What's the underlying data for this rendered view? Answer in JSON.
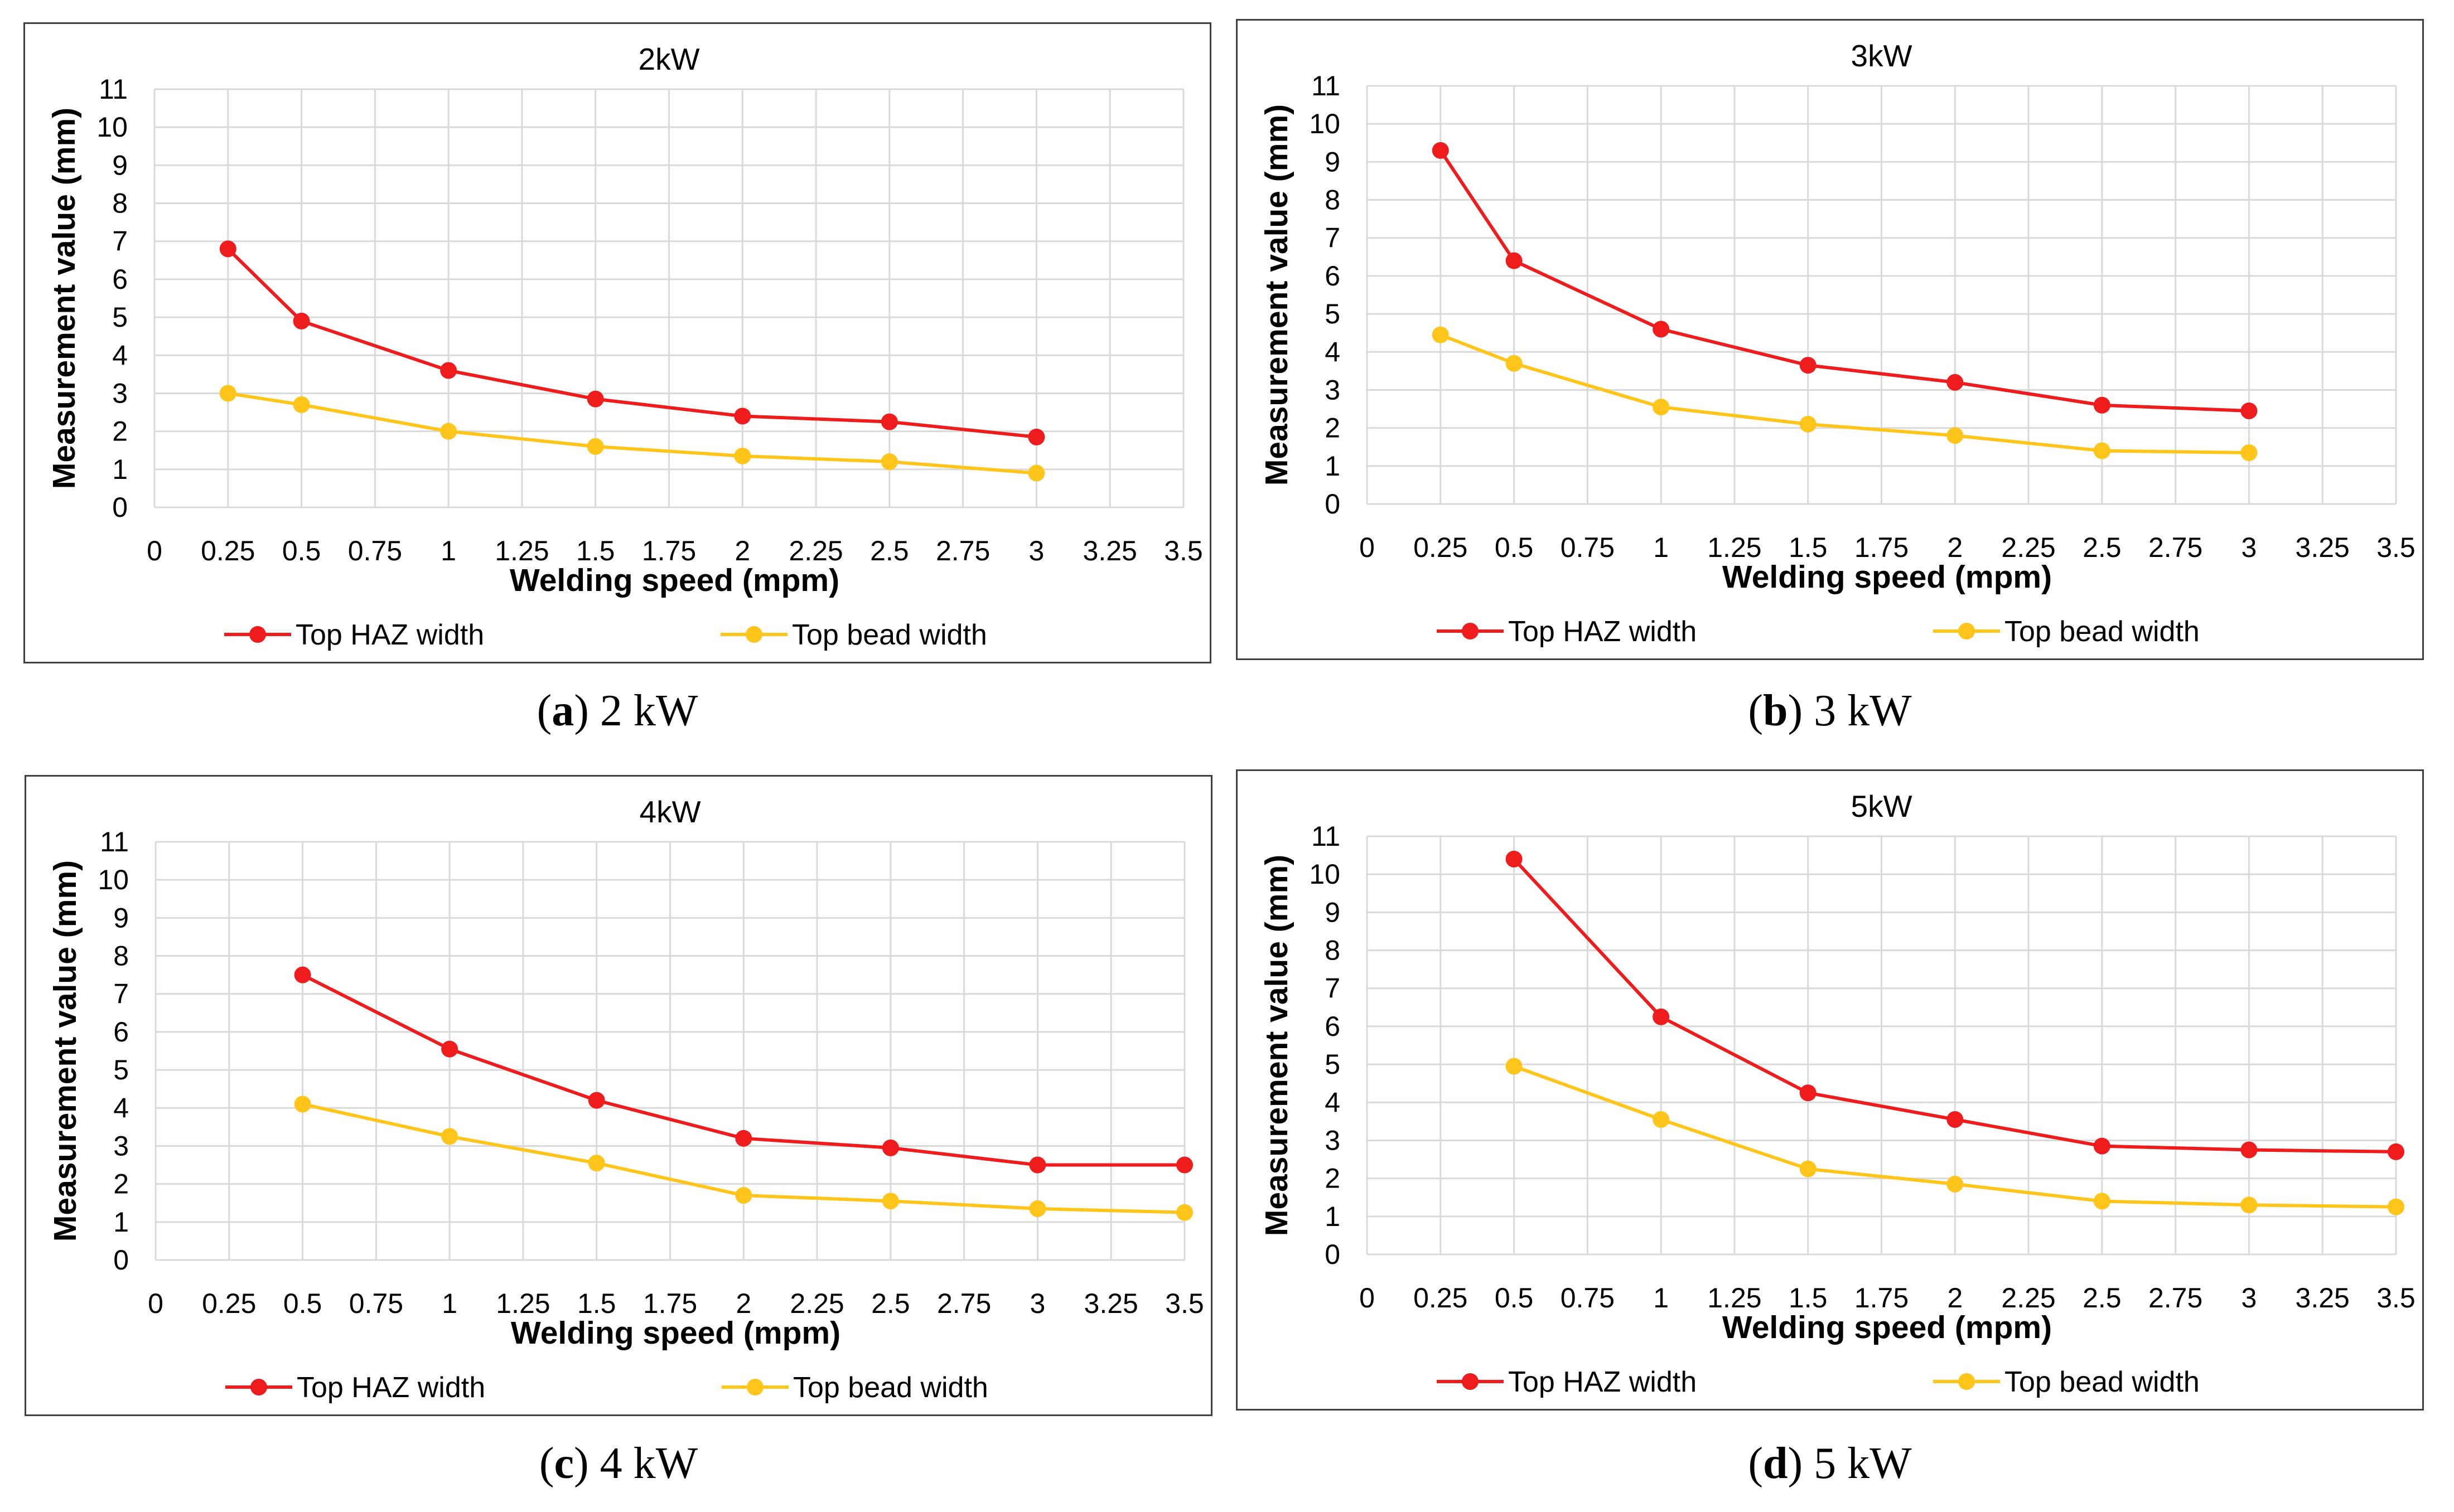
{
  "chart_data": [
    {
      "type": "line",
      "title": "2kW",
      "xlabel": "Welding speed (mpm)",
      "ylabel": "Measurement value  (mm)",
      "xlim": [
        0,
        3.5
      ],
      "ylim": [
        0,
        11
      ],
      "x_ticks": [
        "0",
        "0.25",
        "0.5",
        "0.75",
        "1",
        "1.25",
        "1.5",
        "1.75",
        "2",
        "2.25",
        "2.5",
        "2.75",
        "3",
        "3.25",
        "3.5"
      ],
      "y_ticks": [
        "0",
        "1",
        "2",
        "3",
        "4",
        "5",
        "6",
        "7",
        "8",
        "9",
        "10",
        "11"
      ],
      "grid": true,
      "legend_position": "bottom",
      "series": [
        {
          "name": "Top HAZ width",
          "color": "#ee1c1c",
          "x": [
            0.25,
            0.5,
            1,
            1.5,
            2,
            2.5,
            3
          ],
          "values": [
            6.8,
            4.9,
            3.6,
            2.85,
            2.4,
            2.25,
            1.85
          ]
        },
        {
          "name": "Top bead width",
          "color": "#ffc51a",
          "x": [
            0.25,
            0.5,
            1,
            1.5,
            2,
            2.5,
            3
          ],
          "values": [
            3.0,
            2.7,
            2.0,
            1.6,
            1.35,
            1.2,
            0.9
          ]
        }
      ]
    },
    {
      "type": "line",
      "title": "3kW",
      "xlabel": "Welding speed (mpm)",
      "ylabel": "Measurement value  (mm)",
      "xlim": [
        0,
        3.5
      ],
      "ylim": [
        0,
        11
      ],
      "x_ticks": [
        "0",
        "0.25",
        "0.5",
        "0.75",
        "1",
        "1.25",
        "1.5",
        "1.75",
        "2",
        "2.25",
        "2.5",
        "2.75",
        "3",
        "3.25",
        "3.5"
      ],
      "y_ticks": [
        "0",
        "1",
        "2",
        "3",
        "4",
        "5",
        "6",
        "7",
        "8",
        "9",
        "10",
        "11"
      ],
      "grid": true,
      "legend_position": "bottom",
      "series": [
        {
          "name": "Top HAZ width",
          "color": "#ee1c1c",
          "x": [
            0.25,
            0.5,
            1,
            1.5,
            2,
            2.5,
            3
          ],
          "values": [
            9.3,
            6.4,
            4.6,
            3.65,
            3.2,
            2.6,
            2.45
          ]
        },
        {
          "name": "Top bead width",
          "color": "#ffc51a",
          "x": [
            0.25,
            0.5,
            1,
            1.5,
            2,
            2.5,
            3
          ],
          "values": [
            4.45,
            3.7,
            2.55,
            2.1,
            1.8,
            1.4,
            1.35
          ]
        }
      ]
    },
    {
      "type": "line",
      "title": "4kW",
      "xlabel": "Welding speed (mpm)",
      "ylabel": "Measurement value  (mm)",
      "xlim": [
        0,
        3.5
      ],
      "ylim": [
        0,
        11
      ],
      "x_ticks": [
        "0",
        "0.25",
        "0.5",
        "0.75",
        "1",
        "1.25",
        "1.5",
        "1.75",
        "2",
        "2.25",
        "2.5",
        "2.75",
        "3",
        "3.25",
        "3.5"
      ],
      "y_ticks": [
        "0",
        "1",
        "2",
        "3",
        "4",
        "5",
        "6",
        "7",
        "8",
        "9",
        "10",
        "11"
      ],
      "grid": true,
      "legend_position": "bottom",
      "series": [
        {
          "name": "Top HAZ width",
          "color": "#ee1c1c",
          "x": [
            0.5,
            1,
            1.5,
            2,
            2.5,
            3,
            3.5
          ],
          "values": [
            7.5,
            5.55,
            4.2,
            3.2,
            2.95,
            2.5,
            2.5
          ]
        },
        {
          "name": "Top bead width",
          "color": "#ffc51a",
          "x": [
            0.5,
            1,
            1.5,
            2,
            2.5,
            3,
            3.5
          ],
          "values": [
            4.1,
            3.25,
            2.55,
            1.7,
            1.55,
            1.35,
            1.25
          ]
        }
      ]
    },
    {
      "type": "line",
      "title": "5kW",
      "xlabel": "Welding speed (mpm)",
      "ylabel": "Measurement value  (mm)",
      "xlim": [
        0,
        3.5
      ],
      "ylim": [
        0,
        11
      ],
      "x_ticks": [
        "0",
        "0.25",
        "0.5",
        "0.75",
        "1",
        "1.25",
        "1.5",
        "1.75",
        "2",
        "2.25",
        "2.5",
        "2.75",
        "3",
        "3.25",
        "3.5"
      ],
      "y_ticks": [
        "0",
        "1",
        "2",
        "3",
        "4",
        "5",
        "6",
        "7",
        "8",
        "9",
        "10",
        "11"
      ],
      "grid": true,
      "legend_position": "bottom",
      "series": [
        {
          "name": "Top HAZ width",
          "color": "#ee1c1c",
          "x": [
            0.5,
            1,
            1.5,
            2,
            2.5,
            3,
            3.5
          ],
          "values": [
            10.4,
            6.25,
            4.25,
            3.55,
            2.85,
            2.75,
            2.7
          ]
        },
        {
          "name": "Top bead width",
          "color": "#ffc51a",
          "x": [
            0.5,
            1,
            1.5,
            2,
            2.5,
            3,
            3.5
          ],
          "values": [
            4.95,
            3.55,
            2.25,
            1.85,
            1.4,
            1.3,
            1.25
          ]
        }
      ]
    }
  ],
  "captions": [
    {
      "letter": "a",
      "text": " 2 kW"
    },
    {
      "letter": "b",
      "text": " 3 kW"
    },
    {
      "letter": "c",
      "text": " 4 kW"
    },
    {
      "letter": "d",
      "text": " 5 kW"
    }
  ],
  "colors": {
    "grid": "#d9d9d9",
    "border": "#404040",
    "text": "#000000"
  }
}
